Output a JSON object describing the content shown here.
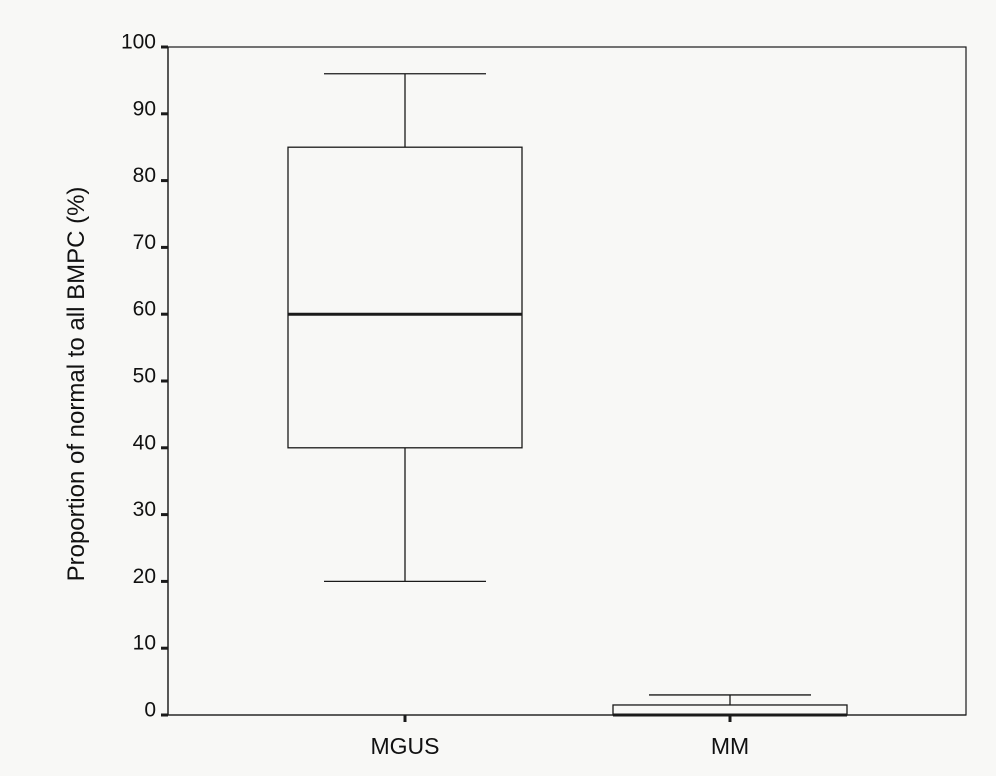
{
  "chart_data": {
    "type": "box",
    "title": "",
    "xlabel": "",
    "ylabel": "Proportion of normal to all BMPC (%)",
    "ylim": [
      0,
      100
    ],
    "yticks": [
      0,
      10,
      20,
      30,
      40,
      50,
      60,
      70,
      80,
      90,
      100
    ],
    "ytick_labels": [
      "0",
      "10",
      "20",
      "30",
      "40",
      "50",
      "60",
      "70",
      "80",
      "90",
      "100"
    ],
    "categories": [
      "MGUS",
      "MM"
    ],
    "boxes": [
      {
        "category": "MGUS",
        "min": 20,
        "q1": 40,
        "median": 60,
        "q3": 85,
        "max": 96
      },
      {
        "category": "MM",
        "min": 0,
        "q1": 0,
        "median": 0,
        "q3": 1.5,
        "max": 3
      }
    ],
    "grid": false,
    "legend": "none"
  }
}
